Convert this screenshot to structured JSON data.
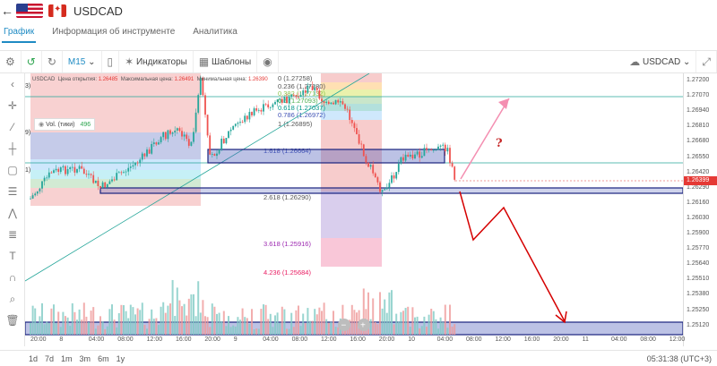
{
  "header": {
    "back_icon": "arrow-left-icon",
    "symbol": "USDCAD"
  },
  "tabs": [
    {
      "label": "График"
    },
    {
      "label": "Информация об инструменте"
    },
    {
      "label": "Аналитика"
    }
  ],
  "toolbar": {
    "timeframe": "M15",
    "indicators_label": "Индикаторы",
    "templates_label": "Шаблоны",
    "symbol_select": "USDCAD"
  },
  "legend": {
    "symbol": "USDCAD",
    "open_label": "Цена открытия:",
    "open_value": "1.26485",
    "high_label": "Максимальная цена:",
    "high_value": "1.26491",
    "low_label": "Минимальная цена:",
    "low_value": "1.26390",
    "vol_label": "Vol. (тики)",
    "vol_value": "496"
  },
  "fib_labels": [
    {
      "text": "0 (1.27258)",
      "color": "#555555"
    },
    {
      "text": "0.236 (1.27180)",
      "color": "#555555"
    },
    {
      "text": "0.382 (1.27132)",
      "color": "#8bc34a"
    },
    {
      "text": "0.5 (1.27093)",
      "color": "#4caf50"
    },
    {
      "text": "0.618 (1.27037)",
      "color": "#009688"
    },
    {
      "text": "0.786 (1.26972)",
      "color": "#3f51b5"
    },
    {
      "text": "1 (1.26895)",
      "color": "#555555"
    },
    {
      "text": "1.618 (1.26664)",
      "color": "#3f51b5"
    },
    {
      "text": "2.618 (1.26290)",
      "color": "#555555"
    },
    {
      "text": "3.618 (1.25916)",
      "color": "#9c27b0"
    },
    {
      "text": "4.236 (1.25684)",
      "color": "#e91e63"
    }
  ],
  "left_fib_labels": [
    "3)",
    "9)",
    "1)"
  ],
  "price_axis": [
    "1.27200",
    "1.27070",
    "1.26940",
    "1.26810",
    "1.26680",
    "1.26550",
    "1.26420",
    "1.26290",
    "1.26160",
    "1.26030",
    "1.25900",
    "1.25770",
    "1.25640",
    "1.25510",
    "1.25380",
    "1.25250",
    "1.25120"
  ],
  "current_price": "1.26399",
  "time_axis": [
    "20:00",
    "8",
    "04:00",
    "08:00",
    "12:00",
    "16:00",
    "20:00",
    "9",
    "04:00",
    "08:00",
    "12:00",
    "16:00",
    "20:00",
    "10",
    "04:00",
    "08:00",
    "12:00",
    "16:00",
    "20:00",
    "11",
    "04:00",
    "08:00",
    "12:00"
  ],
  "annotation": "?",
  "periods": [
    "1d",
    "7d",
    "1m",
    "3m",
    "6m",
    "1y"
  ],
  "clock": "05:31:38 (UTC+3)",
  "colors": {
    "bull": "#26a69a",
    "bear": "#ef5350",
    "accent": "#1e8bc3",
    "drawing": "#e53935",
    "pink": "#f48fb1"
  }
}
